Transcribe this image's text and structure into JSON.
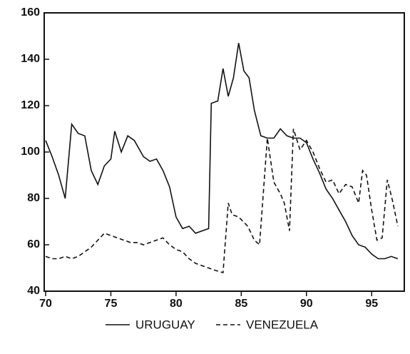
{
  "chart_data": {
    "type": "line",
    "xlim": [
      70,
      97.5
    ],
    "ylim": [
      40,
      160
    ],
    "xticks": [
      70,
      75,
      80,
      85,
      90,
      95
    ],
    "yticks": [
      40,
      60,
      80,
      100,
      120,
      140,
      160
    ],
    "series": [
      {
        "name": "URUGUAY",
        "color": "#111111",
        "dash": "solid",
        "x": [
          70,
          70.5,
          71,
          71.5,
          72,
          72.5,
          73,
          73.5,
          74,
          74.5,
          75,
          75.3,
          75.8,
          76.3,
          76.8,
          77.5,
          78,
          78.5,
          79,
          79.5,
          80,
          80.5,
          81,
          81.5,
          82,
          82.5,
          82.7,
          83.2,
          83.6,
          84,
          84.4,
          84.8,
          85.2,
          85.6,
          86,
          86.5,
          87,
          87.5,
          88,
          88.5,
          89,
          89.5,
          90,
          90.5,
          91,
          91.5,
          92,
          92.5,
          93,
          93.5,
          94,
          94.5,
          95,
          95.5,
          96,
          96.5,
          97
        ],
        "values": [
          105,
          98,
          90,
          80,
          112,
          108,
          107,
          92,
          86,
          94,
          97,
          109,
          100,
          107,
          105,
          98,
          96,
          97,
          92,
          85,
          72,
          67,
          68,
          65,
          66,
          67,
          121,
          122,
          136,
          124,
          132,
          147,
          135,
          132,
          118,
          107,
          106,
          106,
          110,
          107,
          106,
          106,
          104,
          97,
          91,
          84,
          80,
          75,
          70,
          64,
          60,
          59,
          56,
          54,
          54,
          55,
          54
        ]
      },
      {
        "name": "VENEZUELA",
        "color": "#111111",
        "dash": "dashed",
        "x": [
          70,
          70.5,
          71,
          71.5,
          72,
          72.5,
          73,
          73.5,
          74,
          74.5,
          75,
          75.5,
          76,
          76.5,
          77,
          77.5,
          78,
          78.5,
          79,
          79.5,
          80,
          80.5,
          81,
          81.5,
          82,
          82.5,
          83,
          83.6,
          84,
          84.3,
          84.8,
          85.5,
          86,
          86.4,
          87,
          87.5,
          88,
          88.3,
          88.7,
          89,
          89.5,
          90,
          90.5,
          91,
          91.5,
          92,
          92.5,
          93,
          93.5,
          94,
          94.3,
          94.6,
          95,
          95.4,
          95.8,
          96.2,
          96.6,
          97
        ],
        "values": [
          55,
          54,
          54,
          55,
          54,
          55,
          57,
          59,
          62,
          65,
          64,
          63,
          62,
          61,
          61,
          60,
          61,
          62,
          63,
          60,
          58,
          57,
          54,
          52,
          51,
          50,
          49,
          48,
          78,
          73,
          72,
          68,
          62,
          60,
          106,
          87,
          82,
          78,
          66,
          110,
          101,
          105,
          100,
          93,
          87,
          88,
          82,
          86,
          85,
          78,
          92,
          90,
          75,
          62,
          63,
          88,
          79,
          68
        ]
      }
    ]
  }
}
